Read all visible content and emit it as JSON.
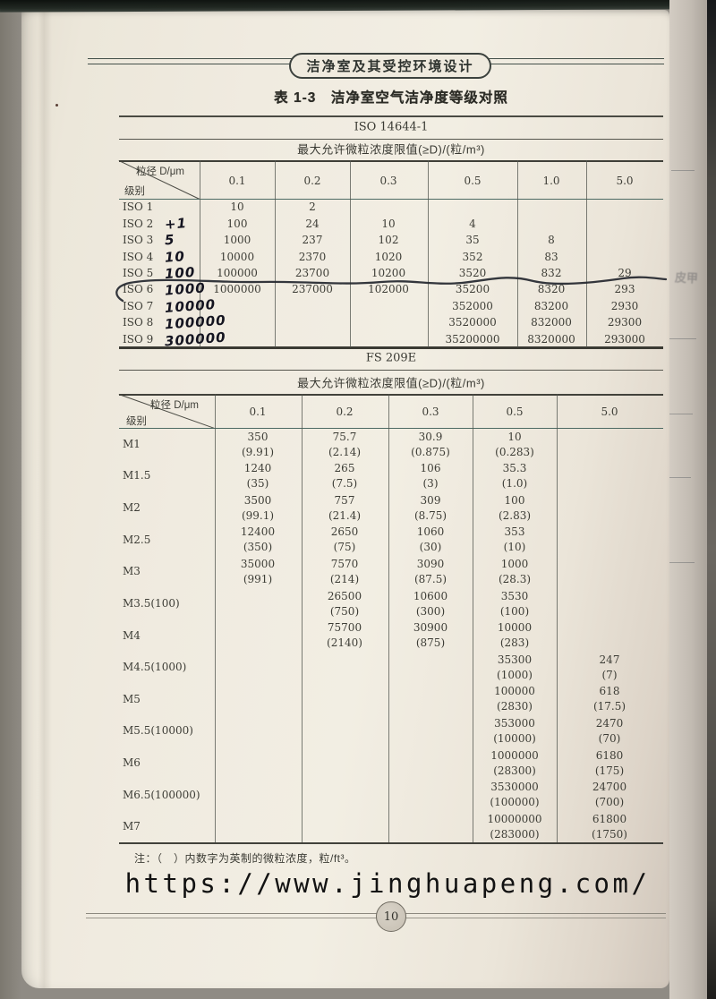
{
  "page_header": {
    "title": "洁净室及其受控环境设计"
  },
  "table_title": "表 1-3　洁净室空气洁净度等级对照",
  "corner": {
    "particle": "粒径 D/μm",
    "class": "级别"
  },
  "iso_table": {
    "standard": "ISO 14644-1",
    "limit_header": "最大允许微粒浓度限值(≥D)/(粒/m³)",
    "columns": [
      "0.1",
      "0.2",
      "0.3",
      "0.5",
      "1.0",
      "5.0"
    ],
    "rows": [
      {
        "label": "ISO 1",
        "hand": "",
        "values": [
          "10",
          "2",
          "",
          "",
          "",
          ""
        ]
      },
      {
        "label": "ISO 2",
        "hand": "+1",
        "values": [
          "100",
          "24",
          "10",
          "4",
          "",
          ""
        ]
      },
      {
        "label": "ISO 3",
        "hand": "5",
        "values": [
          "1000",
          "237",
          "102",
          "35",
          "8",
          ""
        ]
      },
      {
        "label": "ISO 4",
        "hand": "10",
        "values": [
          "10000",
          "2370",
          "1020",
          "352",
          "83",
          ""
        ]
      },
      {
        "label": "ISO 5",
        "hand": "100",
        "values": [
          "100000",
          "23700",
          "10200",
          "3520",
          "832",
          "29"
        ]
      },
      {
        "label": "ISO 6",
        "hand": "1000",
        "values": [
          "1000000",
          "237000",
          "102000",
          "35200",
          "8320",
          "293"
        ]
      },
      {
        "label": "ISO 7",
        "hand": "10000",
        "values": [
          "",
          "",
          "",
          "352000",
          "83200",
          "2930"
        ]
      },
      {
        "label": "ISO 8",
        "hand": "100000",
        "values": [
          "",
          "",
          "",
          "3520000",
          "832000",
          "29300"
        ]
      },
      {
        "label": "ISO 9",
        "hand": "300000",
        "values": [
          "",
          "",
          "",
          "35200000",
          "8320000",
          "293000"
        ]
      }
    ]
  },
  "fs_table": {
    "standard": "FS 209E",
    "limit_header": "最大允许微粒浓度限值(≥D)/(粒/m³)",
    "columns": [
      "0.1",
      "0.2",
      "0.3",
      "0.5",
      "5.0"
    ],
    "rows": [
      {
        "label": "M1",
        "metric": [
          "350",
          "75.7",
          "30.9",
          "10",
          ""
        ],
        "imperial": [
          "(9.91)",
          "(2.14)",
          "(0.875)",
          "(0.283)",
          ""
        ]
      },
      {
        "label": "M1.5",
        "metric": [
          "1240",
          "265",
          "106",
          "35.3",
          ""
        ],
        "imperial": [
          "(35)",
          "(7.5)",
          "(3)",
          "(1.0)",
          ""
        ]
      },
      {
        "label": "M2",
        "metric": [
          "3500",
          "757",
          "309",
          "100",
          ""
        ],
        "imperial": [
          "(99.1)",
          "(21.4)",
          "(8.75)",
          "(2.83)",
          ""
        ]
      },
      {
        "label": "M2.5",
        "metric": [
          "12400",
          "2650",
          "1060",
          "353",
          ""
        ],
        "imperial": [
          "(350)",
          "(75)",
          "(30)",
          "(10)",
          ""
        ]
      },
      {
        "label": "M3",
        "metric": [
          "35000",
          "7570",
          "3090",
          "1000",
          ""
        ],
        "imperial": [
          "(991)",
          "(214)",
          "(87.5)",
          "(28.3)",
          ""
        ]
      },
      {
        "label": "M3.5(100)",
        "metric": [
          "",
          "26500",
          "10600",
          "3530",
          ""
        ],
        "imperial": [
          "",
          "(750)",
          "(300)",
          "(100)",
          ""
        ]
      },
      {
        "label": "M4",
        "metric": [
          "",
          "75700",
          "30900",
          "10000",
          ""
        ],
        "imperial": [
          "",
          "(2140)",
          "(875)",
          "(283)",
          ""
        ]
      },
      {
        "label": "M4.5(1000)",
        "metric": [
          "",
          "",
          "",
          "35300",
          "247"
        ],
        "imperial": [
          "",
          "",
          "",
          "(1000)",
          "(7)"
        ]
      },
      {
        "label": "M5",
        "metric": [
          "",
          "",
          "",
          "100000",
          "618"
        ],
        "imperial": [
          "",
          "",
          "",
          "(2830)",
          "(17.5)"
        ]
      },
      {
        "label": "M5.5(10000)",
        "metric": [
          "",
          "",
          "",
          "353000",
          "2470"
        ],
        "imperial": [
          "",
          "",
          "",
          "(10000)",
          "(70)"
        ]
      },
      {
        "label": "M6",
        "metric": [
          "",
          "",
          "",
          "1000000",
          "6180"
        ],
        "imperial": [
          "",
          "",
          "",
          "(28300)",
          "(175)"
        ]
      },
      {
        "label": "M6.5(100000)",
        "metric": [
          "",
          "",
          "",
          "3530000",
          "24700"
        ],
        "imperial": [
          "",
          "",
          "",
          "(100000)",
          "(700)"
        ]
      },
      {
        "label": "M7",
        "metric": [
          "",
          "",
          "",
          "10000000",
          "61800"
        ],
        "imperial": [
          "",
          "",
          "",
          "(283000)",
          "(1750)"
        ]
      }
    ]
  },
  "note": "注：（　）内数字为英制的微粒浓度，粒/ft³。",
  "watermark_url": "https://www.jinghuapeng.com/",
  "page_number": "10",
  "margin_bleed_text": "皮甲"
}
